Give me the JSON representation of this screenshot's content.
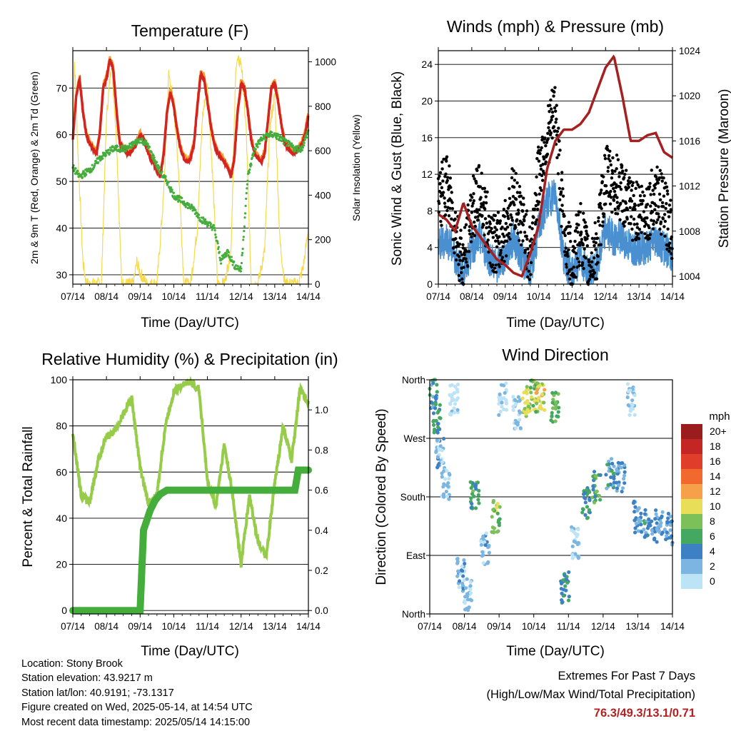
{
  "charts": {
    "temperature": {
      "title": "Temperature (F)",
      "xlabel": "Time (Day/UTC)",
      "ylabel_left": "2m & 9m T (Red, Orange) & 2m Td (Green)",
      "ylabel_right": "Solar Insolation (Yellow)",
      "colors": {
        "t2m": "#d42420",
        "t9m": "#f39a2c",
        "td": "#44ad3c",
        "solar": "#f7d94c"
      }
    },
    "winds": {
      "title": "Winds (mph) & Pressure (mb)",
      "xlabel": "Time (Day/UTC)",
      "ylabel_left": "Sonic Wind & Gust (Blue, Black)",
      "ylabel_right": "Station Pressure (Maroon)",
      "colors": {
        "wind": "#4a90d0",
        "gust": "#000000",
        "pressure": "#a52020"
      }
    },
    "humidity": {
      "title": "Relative Humidity (%) & Precipitation (in)",
      "xlabel": "Time (Day/UTC)",
      "ylabel_left": "Percent & Total Rainfall",
      "colors": {
        "rh": "#96cc4a",
        "precip": "#44ad3c"
      }
    },
    "direction": {
      "title": "Wind Direction",
      "xlabel": "Time (Day/UTC)",
      "ylabel_left": "Direction (Colored By Speed)",
      "legend_title": "mph",
      "legend_labels": [
        "20+",
        "18",
        "16",
        "14",
        "12",
        "10",
        "8",
        "6",
        "4",
        "2",
        "0"
      ],
      "legend_colors": [
        "#9a1c1c",
        "#c42626",
        "#e03e2a",
        "#f2692e",
        "#f7a04a",
        "#e8de58",
        "#7cc05a",
        "#44a860",
        "#3d80c4",
        "#7cb6e0",
        "#bde3f6"
      ]
    }
  },
  "chart_data": [
    {
      "type": "line",
      "title": "Temperature (F)",
      "xlabel": "Time (Day/UTC)",
      "ylabel": "2m & 9m T (Red, Orange) & 2m Td (Green)",
      "y2label": "Solar Insolation (Yellow)",
      "x_ticks": [
        "07/14",
        "08/14",
        "09/14",
        "10/14",
        "11/14",
        "12/14",
        "13/14",
        "14/14"
      ],
      "ylim": [
        28,
        78
      ],
      "y_ticks": [
        30,
        40,
        50,
        60,
        70
      ],
      "y2lim": [
        0,
        1050
      ],
      "y2_ticks": [
        0,
        200,
        400,
        600,
        800,
        1000
      ],
      "grid": true,
      "series": [
        {
          "name": "2m T",
          "axis": "left",
          "x": [
            0,
            0.1,
            0.2,
            0.3,
            0.4,
            0.5,
            0.6,
            0.7,
            0.8,
            0.9,
            1.0,
            1.1,
            1.2,
            1.3,
            1.4,
            1.5,
            1.6,
            1.7,
            1.8,
            1.9,
            2.0,
            2.1,
            2.2,
            2.3,
            2.4,
            2.5,
            2.6,
            2.7,
            2.8,
            2.9,
            3.0,
            3.1,
            3.2,
            3.3,
            3.4,
            3.5,
            3.6,
            3.7,
            3.8,
            3.9,
            4.0,
            4.1,
            4.2,
            4.3,
            4.4,
            4.5,
            4.6,
            4.7,
            4.8,
            4.9,
            5.0,
            5.1,
            5.2,
            5.3,
            5.4,
            5.5,
            5.6,
            5.7,
            5.8,
            5.9,
            6.0,
            6.1,
            6.2,
            6.3,
            6.4,
            6.5,
            6.6,
            6.7,
            6.8,
            6.9,
            7.0
          ],
          "y": [
            59,
            68,
            72,
            65,
            60,
            58,
            57,
            56,
            60,
            70,
            72,
            76,
            74,
            65,
            58,
            57,
            56,
            56,
            57,
            58,
            60,
            59,
            57,
            55,
            54,
            52,
            51,
            56,
            65,
            69,
            66,
            61,
            57,
            55,
            54,
            55,
            58,
            66,
            73,
            72,
            67,
            62,
            58,
            56,
            55,
            54,
            53,
            51,
            55,
            65,
            71,
            70,
            65,
            59,
            56,
            55,
            54,
            56,
            63,
            70,
            71,
            67,
            62,
            58,
            57,
            56,
            56,
            57,
            58,
            60,
            64
          ]
        },
        {
          "name": "9m T",
          "axis": "left",
          "x": [
            0,
            0.5,
            1.0,
            1.5,
            2.0,
            2.5,
            3.0,
            3.5,
            4.0,
            4.5,
            5.0,
            5.5,
            6.0,
            6.5,
            7.0
          ],
          "y": [
            59,
            57,
            71,
            57,
            59,
            53,
            66,
            55,
            71,
            54,
            70,
            55,
            70,
            57,
            63
          ]
        },
        {
          "name": "2m Td",
          "axis": "left",
          "x": [
            0,
            0.2,
            0.4,
            0.6,
            0.8,
            1.0,
            1.2,
            1.4,
            1.6,
            1.8,
            2.0,
            2.2,
            2.4,
            2.6,
            2.8,
            3.0,
            3.2,
            3.4,
            3.6,
            3.8,
            4.0,
            4.2,
            4.4,
            4.6,
            4.8,
            5.0,
            5.2,
            5.4,
            5.6,
            5.8,
            6.0,
            6.2,
            6.4,
            6.6,
            6.8,
            7.0
          ],
          "y": [
            53,
            51,
            52,
            53,
            55,
            56,
            57,
            57,
            57,
            58,
            59,
            58,
            55,
            52,
            50,
            47,
            46,
            45,
            44,
            42,
            41,
            40,
            33,
            35,
            32,
            31,
            51,
            57,
            59,
            60,
            60,
            59,
            58,
            57,
            57,
            61
          ]
        },
        {
          "name": "Solar",
          "axis": "right",
          "x": [
            0,
            0.05,
            0.15,
            0.3,
            0.4,
            0.6,
            0.85,
            1.0,
            1.15,
            1.3,
            1.45,
            1.8,
            1.9,
            2.0,
            2.2,
            2.5,
            2.7,
            2.85,
            3.0,
            3.15,
            3.3,
            3.5,
            3.7,
            3.85,
            4.0,
            4.15,
            4.3,
            4.5,
            4.7,
            4.85,
            5.0,
            5.15,
            5.3,
            5.5,
            5.7,
            5.85,
            6.0,
            6.15,
            6.3,
            6.5,
            6.7,
            6.85,
            7.0
          ],
          "y": [
            700,
            1000,
            600,
            100,
            0,
            0,
            0,
            750,
            1000,
            650,
            0,
            0,
            100,
            50,
            0,
            0,
            400,
            950,
            800,
            500,
            0,
            0,
            250,
            750,
            900,
            500,
            0,
            0,
            150,
            1000,
            1000,
            700,
            0,
            0,
            150,
            700,
            850,
            200,
            0,
            0,
            0,
            80,
            250
          ]
        }
      ]
    },
    {
      "type": "scatter",
      "title": "Winds (mph) & Pressure (mb)",
      "xlabel": "Time (Day/UTC)",
      "ylabel": "Sonic Wind & Gust (Blue, Black)",
      "y2label": "Station Pressure (Maroon)",
      "x_ticks": [
        "07/14",
        "08/14",
        "09/14",
        "10/14",
        "11/14",
        "12/14",
        "13/14",
        "14/14"
      ],
      "ylim": [
        0,
        25.5
      ],
      "y_ticks": [
        0,
        4,
        8,
        12,
        16,
        20,
        24
      ],
      "y2lim": [
        1003.3,
        1024
      ],
      "y2_ticks": [
        1004,
        1008,
        1012,
        1016,
        1020,
        1024
      ],
      "grid": true,
      "series": [
        {
          "name": "Sonic Wind",
          "kind": "line",
          "axis": "left",
          "x": [
            0,
            0.25,
            0.5,
            0.75,
            1.0,
            1.25,
            1.5,
            1.75,
            2.0,
            2.25,
            2.5,
            2.75,
            3.0,
            3.25,
            3.5,
            3.75,
            4.0,
            4.25,
            4.5,
            4.75,
            5.0,
            5.25,
            5.5,
            5.75,
            6.0,
            6.25,
            6.5,
            6.75,
            7.0
          ],
          "y": [
            4,
            5,
            3,
            1,
            4,
            5,
            3,
            2,
            3,
            5,
            3,
            1,
            6,
            9,
            10,
            3,
            1,
            3,
            1,
            2,
            6,
            5,
            5,
            4,
            4,
            4,
            5,
            4,
            3
          ]
        },
        {
          "name": "Gust",
          "kind": "scatter",
          "axis": "left",
          "x": [
            0,
            0.25,
            0.5,
            0.75,
            1.0,
            1.25,
            1.5,
            1.75,
            2.0,
            2.25,
            2.5,
            2.75,
            3.0,
            3.25,
            3.5,
            3.75,
            4.0,
            4.25,
            4.5,
            4.75,
            5.0,
            5.25,
            5.5,
            5.75,
            6.0,
            6.25,
            6.5,
            6.75,
            7.0
          ],
          "y": [
            9,
            11,
            6,
            2,
            8,
            10,
            6,
            4,
            6,
            10,
            7,
            3,
            12,
            16,
            19,
            6,
            2,
            6,
            2,
            4,
            12,
            11,
            10,
            8,
            8,
            8,
            10,
            8,
            6
          ]
        },
        {
          "name": "Station Pressure",
          "kind": "line",
          "axis": "right",
          "x": [
            0,
            0.25,
            0.5,
            0.75,
            1.0,
            1.25,
            1.5,
            1.75,
            2.0,
            2.25,
            2.5,
            2.75,
            3.0,
            3.25,
            3.5,
            3.75,
            4.0,
            4.25,
            4.5,
            4.75,
            5.0,
            5.25,
            5.5,
            5.75,
            6.0,
            6.25,
            6.5,
            6.75,
            7.0
          ],
          "y": [
            1009.5,
            1009,
            1008,
            1010.5,
            1008.5,
            1007.5,
            1006.5,
            1005.5,
            1005,
            1004.3,
            1004,
            1006,
            1008.5,
            1013.5,
            1016,
            1017,
            1017,
            1017.5,
            1018.5,
            1020.5,
            1022.5,
            1023.5,
            1020,
            1016,
            1016,
            1016.5,
            1016.7,
            1015,
            1014.5
          ]
        }
      ]
    },
    {
      "type": "line",
      "title": "Relative Humidity (%) & Precipitation (in)",
      "xlabel": "Time (Day/UTC)",
      "ylabel": "Percent & Total Rainfall",
      "x_ticks": [
        "07/14",
        "08/14",
        "09/14",
        "10/14",
        "11/14",
        "12/14",
        "13/14",
        "14/14"
      ],
      "ylim": [
        -1.5,
        100
      ],
      "y_ticks": [
        0,
        20,
        40,
        60,
        80,
        100
      ],
      "y2lim": [
        -0.017,
        1.15
      ],
      "y2_ticks": [
        0.0,
        0.2,
        0.4,
        0.6,
        0.8,
        1.0
      ],
      "grid": true,
      "series": [
        {
          "name": "Relative Humidity",
          "axis": "left",
          "x": [
            0,
            0.25,
            0.5,
            0.75,
            1.0,
            1.25,
            1.5,
            1.75,
            2.0,
            2.25,
            2.5,
            2.75,
            3.0,
            3.25,
            3.5,
            3.75,
            4.0,
            4.25,
            4.5,
            4.75,
            5.0,
            5.25,
            5.5,
            5.75,
            6.0,
            6.25,
            6.5,
            6.75,
            7.0
          ],
          "y": [
            77,
            50,
            47,
            65,
            75,
            78,
            85,
            92,
            62,
            46,
            50,
            80,
            95,
            98,
            99,
            96,
            56,
            45,
            72,
            50,
            20,
            50,
            30,
            23,
            55,
            80,
            65,
            96,
            90
          ]
        },
        {
          "name": "Total Precipitation",
          "axis": "right",
          "x": [
            0,
            1.0,
            2.0,
            2.05,
            2.1,
            2.2,
            2.3,
            2.45,
            2.6,
            2.8,
            3.0,
            4.0,
            5.0,
            6.0,
            6.6,
            6.7,
            7.0
          ],
          "y": [
            0,
            0,
            0,
            0.2,
            0.4,
            0.45,
            0.5,
            0.55,
            0.58,
            0.6,
            0.6,
            0.6,
            0.6,
            0.6,
            0.6,
            0.7,
            0.7
          ]
        }
      ]
    },
    {
      "type": "scatter",
      "title": "Wind Direction",
      "xlabel": "Time (Day/UTC)",
      "ylabel": "Direction (Colored By Speed)",
      "x_ticks": [
        "07/14",
        "08/14",
        "09/14",
        "10/14",
        "11/14",
        "12/14",
        "13/14",
        "14/14"
      ],
      "y_ticks": [
        "North",
        "East",
        "South",
        "West",
        "North"
      ],
      "ylim": [
        0,
        360
      ],
      "legend": "right",
      "legend_title": "mph",
      "grid": true,
      "points": [
        {
          "x": 0.1,
          "y": 340,
          "speed": 5
        },
        {
          "x": 0.2,
          "y": 300,
          "speed": 6
        },
        {
          "x": 0.3,
          "y": 250,
          "speed": 3
        },
        {
          "x": 0.45,
          "y": 200,
          "speed": 2
        },
        {
          "x": 0.7,
          "y": 330,
          "speed": 1
        },
        {
          "x": 0.9,
          "y": 60,
          "speed": 3
        },
        {
          "x": 1.1,
          "y": 30,
          "speed": 2
        },
        {
          "x": 1.3,
          "y": 185,
          "speed": 7
        },
        {
          "x": 1.6,
          "y": 100,
          "speed": 3
        },
        {
          "x": 1.9,
          "y": 150,
          "speed": 9
        },
        {
          "x": 2.1,
          "y": 330,
          "speed": 1
        },
        {
          "x": 2.5,
          "y": 310,
          "speed": 2
        },
        {
          "x": 2.8,
          "y": 325,
          "speed": 10
        },
        {
          "x": 3.0,
          "y": 335,
          "speed": 9
        },
        {
          "x": 3.2,
          "y": 330,
          "speed": 11
        },
        {
          "x": 3.6,
          "y": 320,
          "speed": 8
        },
        {
          "x": 3.9,
          "y": 40,
          "speed": 6
        },
        {
          "x": 4.2,
          "y": 110,
          "speed": 2
        },
        {
          "x": 4.5,
          "y": 170,
          "speed": 6
        },
        {
          "x": 4.8,
          "y": 195,
          "speed": 7
        },
        {
          "x": 5.2,
          "y": 215,
          "speed": 5
        },
        {
          "x": 5.5,
          "y": 210,
          "speed": 4
        },
        {
          "x": 5.8,
          "y": 330,
          "speed": 2
        },
        {
          "x": 6.0,
          "y": 150,
          "speed": 4
        },
        {
          "x": 6.3,
          "y": 140,
          "speed": 5
        },
        {
          "x": 6.6,
          "y": 135,
          "speed": 4
        },
        {
          "x": 6.9,
          "y": 130,
          "speed": 4
        }
      ]
    }
  ],
  "info": {
    "location": "Location: Stony Brook",
    "elevation": "Station elevation: 43.9217 m",
    "latlon": "Station lat/lon: 40.9191; -73.1317",
    "created": "Figure created on Wed, 2025-05-14, at 14:54 UTC",
    "recent": "Most recent data timestamp: 2025/05/14 14:15:00"
  },
  "extremes": {
    "heading": "Extremes For Past 7 Days",
    "subheading": "(High/Low/Max Wind/Total Precipitation)",
    "values": "76.3/49.3/13.1/0.71"
  }
}
